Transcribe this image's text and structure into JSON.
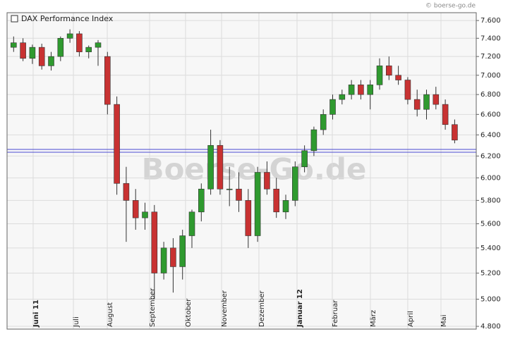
{
  "chart_data": {
    "type": "candlestick",
    "title": "DAX Performance Index",
    "source": "© boerse-go.de",
    "watermark": "Boerse-Go.de",
    "log_scale": true,
    "grid": true,
    "up_color": "#2f9a2f",
    "down_color": "#c83232",
    "hlines": [
      6262,
      6235
    ],
    "hline_color": "#4a4ad0",
    "xlim": [
      -0.7,
      49.3
    ],
    "xticks": [
      {
        "value": 2.08,
        "label": "Juni 11"
      },
      {
        "value": 6.37,
        "label": "Juli"
      },
      {
        "value": 9.98,
        "label": "August"
      },
      {
        "value": 14.49,
        "label": "September"
      },
      {
        "value": 18.32,
        "label": "Oktober"
      },
      {
        "value": 22.16,
        "label": "November"
      },
      {
        "value": 26.14,
        "label": "Dezember"
      },
      {
        "value": 30.2,
        "label": "Januar 12"
      },
      {
        "value": 33.96,
        "label": "Februar"
      },
      {
        "value": 38.02,
        "label": "März"
      },
      {
        "value": 42.0,
        "label": "April"
      },
      {
        "value": 45.54,
        "label": "Mai"
      }
    ],
    "ylim": [
      4780,
      7690
    ],
    "yticks": [
      {
        "value": 7600,
        "label": "7.600"
      },
      {
        "value": 7400,
        "label": "7.400"
      },
      {
        "value": 7200,
        "label": "7.200"
      },
      {
        "value": 7000,
        "label": "7.000"
      },
      {
        "value": 6800,
        "label": "6.800"
      },
      {
        "value": 6600,
        "label": "6.600"
      },
      {
        "value": 6400,
        "label": "6.400"
      },
      {
        "value": 6200,
        "label": "6.200"
      },
      {
        "value": 6000,
        "label": "6.000"
      },
      {
        "value": 5800,
        "label": "5.800"
      },
      {
        "value": 5600,
        "label": "5.600"
      },
      {
        "value": 5400,
        "label": "5.400"
      },
      {
        "value": 5200,
        "label": "5.200"
      },
      {
        "value": 5000,
        "label": "5.000"
      },
      {
        "value": 4800,
        "label": "4.800"
      }
    ],
    "open": [
      7300,
      7350,
      7180,
      7300,
      7100,
      7200,
      7400,
      7450,
      7250,
      7300,
      7200,
      6700,
      5950,
      5800,
      5650,
      5700,
      5200,
      5400,
      5250,
      5500,
      5700,
      5900,
      6300,
      5900,
      5900,
      5800,
      5500,
      6050,
      5900,
      5700,
      5800,
      6100,
      6250,
      6450,
      6600,
      6750,
      6800,
      6900,
      6800,
      6900,
      7100,
      7000,
      6950,
      6750,
      6650,
      6800,
      6700,
      6500
    ],
    "high": [
      7420,
      7400,
      7330,
      7340,
      7250,
      7420,
      7500,
      7480,
      7320,
      7380,
      7250,
      6780,
      6100,
      5900,
      5780,
      5760,
      5450,
      5480,
      5550,
      5720,
      5950,
      6450,
      6350,
      6100,
      6050,
      5900,
      6100,
      6150,
      6000,
      5850,
      6150,
      6300,
      6480,
      6650,
      6800,
      6850,
      6950,
      6950,
      6950,
      7180,
      7200,
      7100,
      6980,
      6850,
      6850,
      6880,
      6750,
      6550
    ],
    "low": [
      7250,
      7150,
      7120,
      7060,
      7050,
      7150,
      7350,
      7200,
      7180,
      7100,
      6600,
      5850,
      5450,
      5550,
      5550,
      5000,
      5150,
      5050,
      5150,
      5400,
      5620,
      5850,
      5850,
      5750,
      5700,
      5400,
      5450,
      5850,
      5650,
      5640,
      5750,
      6050,
      6200,
      6400,
      6550,
      6700,
      6750,
      6750,
      6650,
      6850,
      6950,
      6900,
      6700,
      6580,
      6550,
      6650,
      6450,
      6320
    ],
    "close": [
      7350,
      7180,
      7300,
      7100,
      7200,
      7400,
      7450,
      7250,
      7300,
      7350,
      6700,
      5950,
      5800,
      5650,
      5700,
      5200,
      5400,
      5250,
      5500,
      5700,
      5900,
      6300,
      5900,
      5900,
      5800,
      5500,
      6050,
      5900,
      5700,
      5800,
      6100,
      6250,
      6450,
      6600,
      6750,
      6800,
      6900,
      6800,
      6900,
      7100,
      7000,
      6950,
      6750,
      6650,
      6800,
      6700,
      6500,
      6350
    ]
  }
}
